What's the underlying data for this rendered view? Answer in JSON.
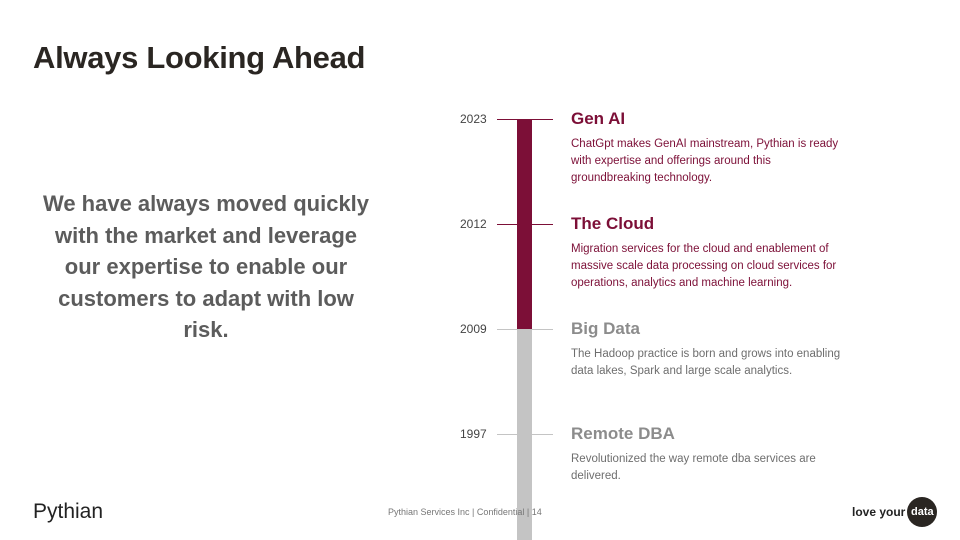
{
  "slide": {
    "title": "Always Looking Ahead",
    "tagline": "We have always moved quickly with the market and leverage our expertise to enable our customers to adapt with low risk."
  },
  "timeline": [
    {
      "year": "2023",
      "title": "Gen AI",
      "description": "ChatGpt makes GenAI mainstream, Pythian is ready with expertise and offerings around this groundbreaking technology."
    },
    {
      "year": "2012",
      "title": "The Cloud",
      "description": "Migration services for the cloud and enablement of massive scale data processing  on cloud services for operations, analytics and machine learning."
    },
    {
      "year": "2009",
      "title": "Big Data",
      "description": "The Hadoop practice is born and grows into enabling data lakes, Spark and large scale analytics."
    },
    {
      "year": "1997",
      "title": "Remote DBA",
      "description": "Revolutionized the way remote dba services are delivered."
    }
  ],
  "footer": {
    "logo": "Pythian",
    "text": "Pythian Services Inc  | Confidential | 14",
    "brand_love": "love your",
    "brand_data": "data"
  },
  "colors": {
    "accent": "#7c0f37",
    "muted": "#c4c4c4",
    "title": "#2a2622"
  }
}
